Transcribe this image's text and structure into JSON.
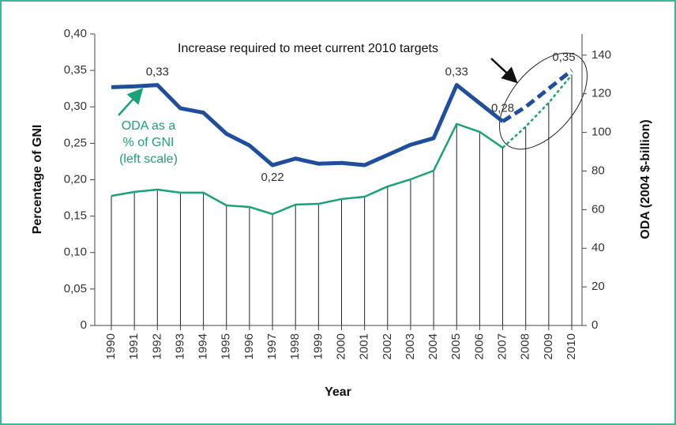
{
  "chart_data": {
    "type": "line",
    "annotations": {
      "targets": "Increase required to meet current 2010 targets",
      "oda_note": [
        "ODA as a",
        "% of GNI",
        "(left scale)"
      ]
    },
    "xlabel": "Year",
    "ylabel": "Percentage of GNI",
    "y2label": "ODA (2004 $-billion)",
    "x": [
      "1990",
      "1991",
      "1992",
      "1993",
      "1994",
      "1995",
      "1996",
      "1997",
      "1998",
      "1999",
      "2000",
      "2001",
      "2002",
      "2003",
      "2004",
      "2005",
      "2006",
      "2007",
      "2008",
      "2009",
      "2010"
    ],
    "series": [
      {
        "name": "ODA as % of GNI",
        "color": "#1f4e9c",
        "dashed": false,
        "values": [
          0.327,
          0.328,
          0.33,
          0.298,
          0.292,
          0.263,
          0.247,
          0.22,
          0.229,
          0.222,
          0.223,
          0.22,
          0.234,
          0.248,
          0.257,
          0.33,
          0.305,
          0.28,
          null,
          null,
          null
        ],
        "value_labels": [
          null,
          null,
          "0,33",
          null,
          null,
          null,
          null,
          "0,22",
          null,
          null,
          null,
          null,
          null,
          null,
          null,
          "0,33",
          null,
          "0,28",
          null,
          null,
          null
        ]
      },
      {
        "name": "ODA as % of GNI required",
        "color": "#1f4e9c",
        "dashed": true,
        "values": [
          null,
          null,
          null,
          null,
          null,
          null,
          null,
          null,
          null,
          null,
          null,
          null,
          null,
          null,
          null,
          null,
          null,
          0.28,
          0.3,
          0.325,
          0.35
        ],
        "value_labels": [
          null,
          null,
          null,
          null,
          null,
          null,
          null,
          null,
          null,
          null,
          null,
          null,
          null,
          null,
          null,
          null,
          null,
          null,
          null,
          null,
          "0,35"
        ]
      },
      {
        "name": "ODA",
        "color": "#1aa37a",
        "dashed": false,
        "axis": "y2",
        "values": [
          67.1,
          69.2,
          70.4,
          68.8,
          68.8,
          62.2,
          61.4,
          57.7,
          62.6,
          63,
          65.5,
          66.7,
          72,
          75.7,
          80.2,
          104.4,
          100.3,
          92.1,
          null,
          null,
          null
        ]
      },
      {
        "name": "ODA required",
        "color": "#1aa37a",
        "dashed": true,
        "axis": "y2",
        "values": [
          null,
          null,
          null,
          null,
          null,
          null,
          null,
          null,
          null,
          null,
          null,
          null,
          null,
          null,
          null,
          null,
          null,
          92.1,
          103,
          115.4,
          129.8
        ]
      }
    ],
    "ylim": [
      0,
      0.4
    ],
    "yticks": [
      0,
      {
        "value": 0.05,
        "label": "0,05"
      },
      {
        "value": 0.1,
        "label": "0,10"
      },
      {
        "value": 0.15,
        "label": "0,15"
      },
      {
        "value": 0.2,
        "label": "0,20"
      },
      {
        "value": 0.25,
        "label": "0,25"
      },
      {
        "value": 0.3,
        "label": "0,30"
      },
      {
        "value": 0.35,
        "label": "0,35"
      },
      {
        "value": 0.4,
        "label": "0,40"
      }
    ],
    "y2lim": [
      0,
      151
    ],
    "y2ticks": [
      0,
      20,
      40,
      60,
      80,
      100,
      120,
      140
    ]
  }
}
